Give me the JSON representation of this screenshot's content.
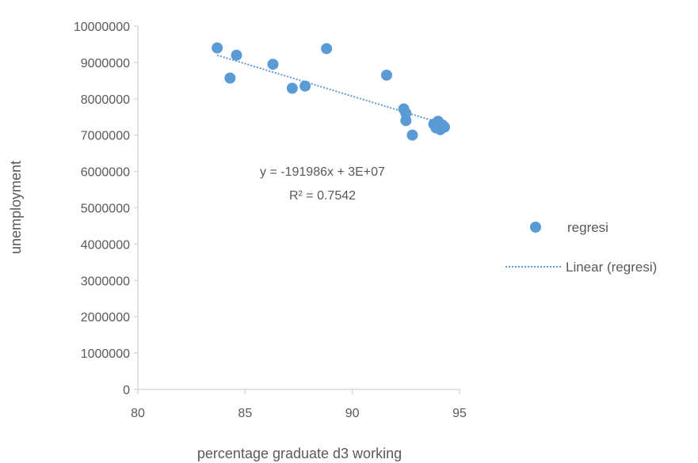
{
  "chart_data": {
    "type": "scatter",
    "xlabel": "percentage graduate d3 working",
    "ylabel": "unemployment",
    "xlim": [
      80,
      95
    ],
    "ylim": [
      0,
      10000000
    ],
    "x_ticks": [
      80,
      85,
      90,
      95
    ],
    "x_tick_labels": [
      "80",
      "85",
      "90",
      "95"
    ],
    "y_ticks": [
      0,
      1000000,
      2000000,
      3000000,
      4000000,
      5000000,
      6000000,
      7000000,
      8000000,
      9000000,
      10000000
    ],
    "y_tick_labels": [
      "0",
      "1000000",
      "2000000",
      "3000000",
      "4000000",
      "5000000",
      "6000000",
      "7000000",
      "8000000",
      "9000000",
      "10000000"
    ],
    "grid": false,
    "series": [
      {
        "name": "regresi",
        "color": "#5b9bd5",
        "points": [
          {
            "x": 83.7,
            "y": 9400000
          },
          {
            "x": 84.3,
            "y": 8570000
          },
          {
            "x": 84.6,
            "y": 9200000
          },
          {
            "x": 86.3,
            "y": 8950000
          },
          {
            "x": 87.2,
            "y": 8290000
          },
          {
            "x": 87.8,
            "y": 8350000
          },
          {
            "x": 88.8,
            "y": 9380000
          },
          {
            "x": 91.6,
            "y": 8650000
          },
          {
            "x": 92.4,
            "y": 7720000
          },
          {
            "x": 92.5,
            "y": 7600000
          },
          {
            "x": 92.5,
            "y": 7400000
          },
          {
            "x": 92.8,
            "y": 7000000
          },
          {
            "x": 93.8,
            "y": 7300000
          },
          {
            "x": 93.9,
            "y": 7200000
          },
          {
            "x": 94.0,
            "y": 7380000
          },
          {
            "x": 94.1,
            "y": 7150000
          },
          {
            "x": 94.2,
            "y": 7280000
          },
          {
            "x": 94.3,
            "y": 7220000
          }
        ]
      }
    ],
    "trendline": {
      "name": "Linear (regresi)",
      "type": "linear",
      "color": "#5b9bd5",
      "from": {
        "x": 83.7,
        "y": 9200000
      },
      "to": {
        "x": 94.3,
        "y": 7300000
      },
      "equation": "y = -191986x + 3E+07",
      "r_squared": "R² = 0.7542"
    },
    "legend": {
      "placement": "right",
      "entries": [
        "regresi",
        "Linear (regresi)"
      ]
    }
  }
}
